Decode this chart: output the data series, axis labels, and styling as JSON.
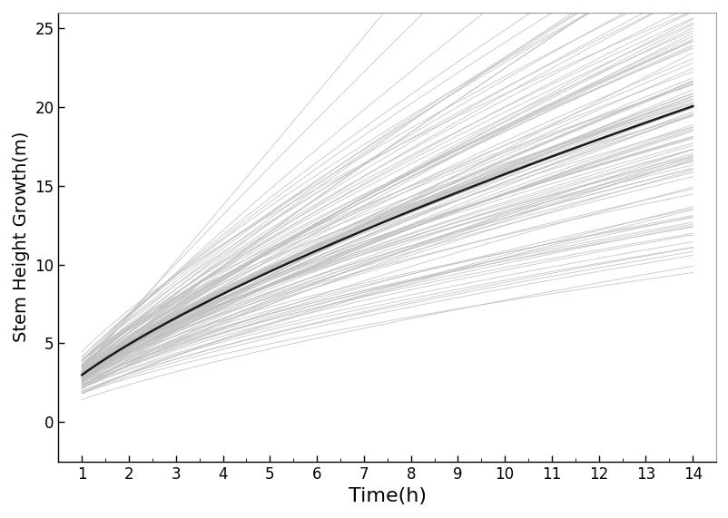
{
  "title": "",
  "xlabel": "Time(h)",
  "ylabel": "Stem Height Growth(m)",
  "xlim": [
    0.5,
    14.5
  ],
  "ylim": [
    -2.5,
    26
  ],
  "xticks": [
    1,
    2,
    3,
    4,
    5,
    6,
    7,
    8,
    9,
    10,
    11,
    12,
    13,
    14
  ],
  "yticks": [
    0,
    5,
    10,
    15,
    20,
    25
  ],
  "n_individuals": 120,
  "time_points": 300,
  "t_start": 1,
  "t_end": 14,
  "mean_A": 3.0,
  "mean_b": 0.72,
  "individual_color": "#c0c0c0",
  "mean_color": "#1a1a1a",
  "mean_linewidth": 1.8,
  "individual_linewidth": 0.6,
  "individual_alpha": 0.9,
  "background_color": "#ffffff",
  "seed": 42,
  "xlabel_fontsize": 16,
  "ylabel_fontsize": 14,
  "tick_fontsize": 12,
  "A_std": 0.6,
  "b_std": 0.08
}
